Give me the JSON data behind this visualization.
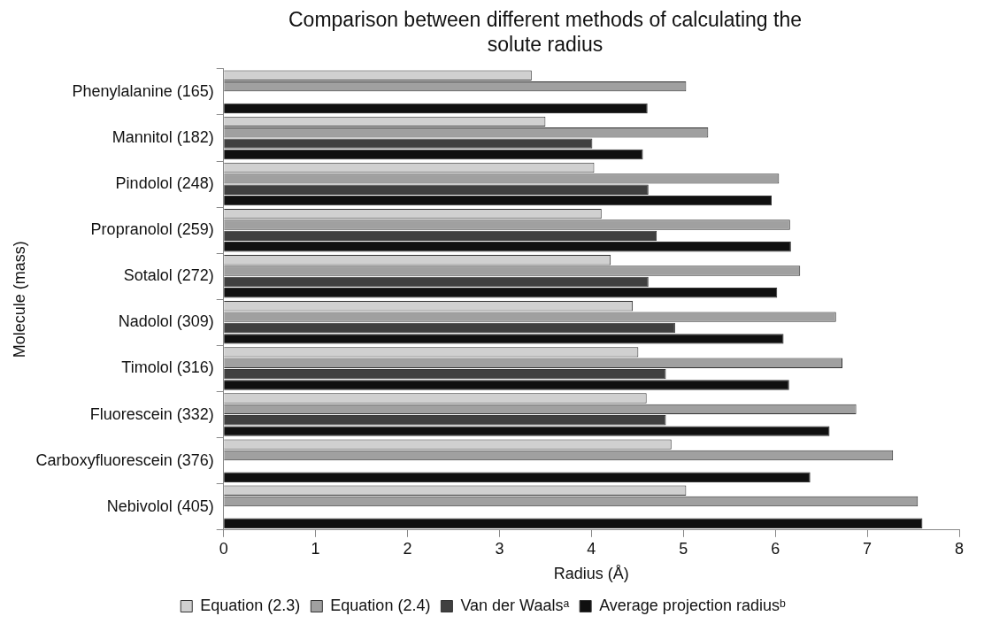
{
  "chart_data": {
    "type": "bar",
    "orientation": "horizontal",
    "title": "Comparison between different methods of calculating the solute radius",
    "xlabel": "Radius (Å)",
    "ylabel": "Molecule (mass)",
    "categories": [
      "Phenylalanine (165)",
      "Mannitol (182)",
      "Pindolol (248)",
      "Propranolol (259)",
      "Sotalol (272)",
      "Nadolol (309)",
      "Timolol (316)",
      "Fluorescein (332)",
      "Carboxyfluorescein (376)",
      "Nebivolol (405)"
    ],
    "series": [
      {
        "name": "Equation (2.3)",
        "color": "#d0d0d0",
        "values": [
          3.35,
          3.5,
          4.03,
          4.11,
          4.21,
          4.45,
          4.51,
          4.6,
          4.87,
          5.03
        ]
      },
      {
        "name": "Equation (2.4)",
        "color": "#a0a0a0",
        "values": [
          5.03,
          5.27,
          6.04,
          6.16,
          6.27,
          6.66,
          6.73,
          6.88,
          7.28,
          7.55
        ]
      },
      {
        "name": "Van der Waalsᵃ",
        "color": "#404040",
        "values": [
          null,
          4.01,
          4.62,
          4.71,
          4.62,
          4.91,
          4.81,
          4.81,
          null,
          null
        ]
      },
      {
        "name": "Average projection radiusᵇ",
        "color": "#101010",
        "values": [
          4.61,
          4.56,
          5.96,
          6.17,
          6.02,
          6.09,
          6.15,
          6.59,
          6.38,
          7.6
        ]
      }
    ],
    "xlim": [
      0,
      8
    ],
    "xticks": [
      0,
      1,
      2,
      3,
      4,
      5,
      6,
      7,
      8
    ],
    "grid": false,
    "legend": "bottom"
  }
}
